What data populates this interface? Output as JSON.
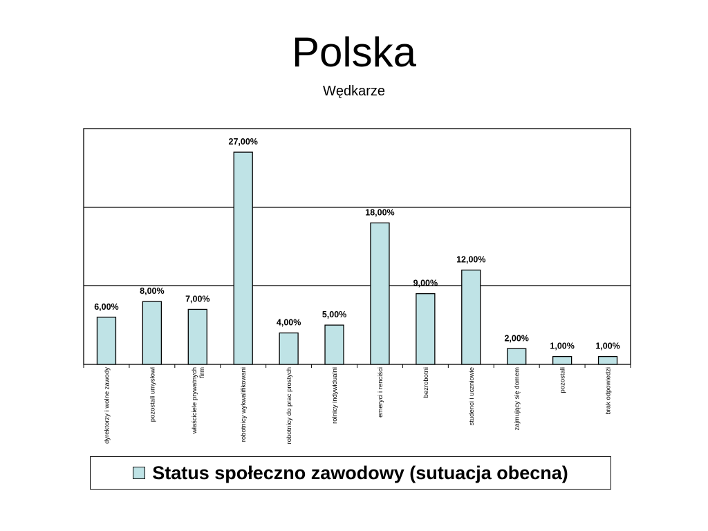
{
  "slide": {
    "title": "Polska",
    "subtitle": "Wędkarze"
  },
  "colors": {
    "bar_fill": "#bfe3e6",
    "bar_stroke": "#000000",
    "background": "#ffffff"
  },
  "chart_data": {
    "type": "bar",
    "categories": [
      [
        "dyrektorzy i wolne zawody"
      ],
      [
        "pozostali umysłowi"
      ],
      [
        "właściciele prywatnych",
        "firm"
      ],
      [
        "robotnicy wykwalifikowani"
      ],
      [
        "robotnicy do prac prostych"
      ],
      [
        "rolnicy indywidualni"
      ],
      [
        "emeryci i  renciści"
      ],
      [
        "bezrobotni"
      ],
      [
        "studenci i  uczniowie"
      ],
      [
        "zajmujący się domem"
      ],
      [
        "pozostali"
      ],
      [
        "brak odpowiedzi"
      ]
    ],
    "series": [
      {
        "name": "Status społeczno zawodowy  (sutuacja obecna)",
        "values": [
          6,
          8,
          7,
          27,
          4,
          5,
          18,
          9,
          12,
          2,
          1,
          1
        ],
        "labels": [
          "6,00%",
          "8,00%",
          "7,00%",
          "27,00%",
          "4,00%",
          "5,00%",
          "18,00%",
          "9,00%",
          "12,00%",
          "2,00%",
          "1,00%",
          "1,00%"
        ]
      }
    ],
    "ylim": [
      0,
      30
    ],
    "gridlines": [
      10,
      20
    ],
    "y_axis_visible": false,
    "legend_position": "bottom"
  }
}
